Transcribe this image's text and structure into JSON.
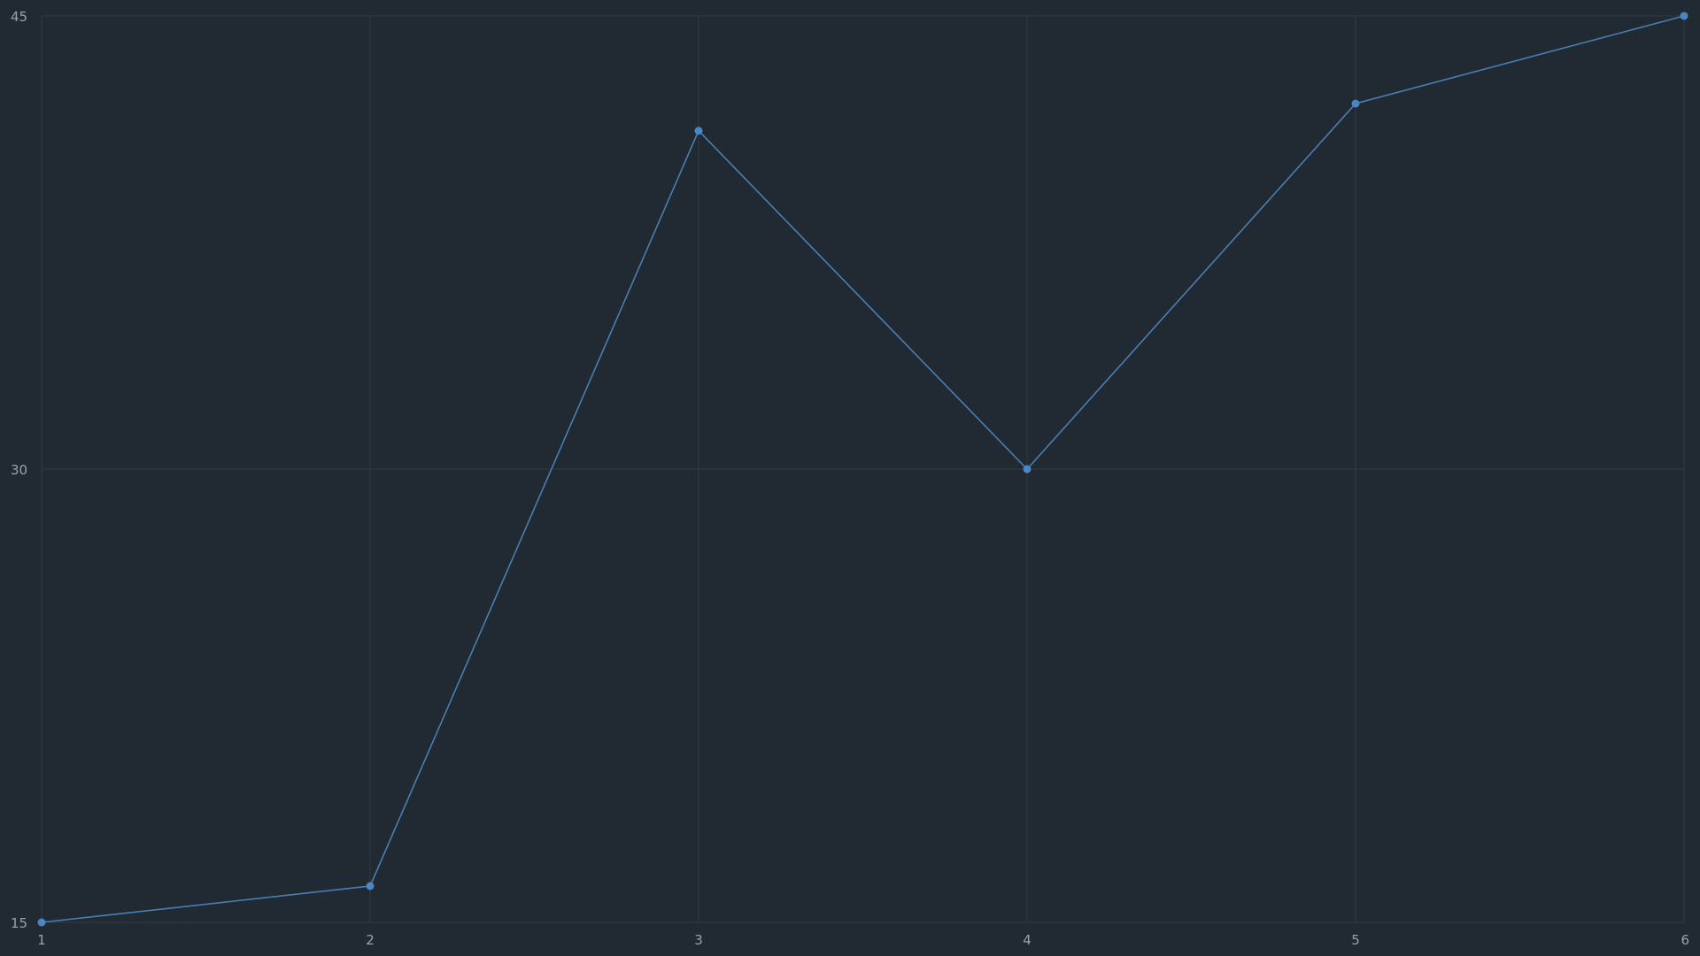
{
  "chart_data": {
    "type": "line",
    "title": "",
    "xlabel": "",
    "ylabel": "",
    "x": [
      1,
      2,
      3,
      4,
      5,
      6
    ],
    "xlim": [
      1,
      6
    ],
    "ylim": [
      15,
      45
    ],
    "x_ticks": [
      1,
      2,
      3,
      4,
      5,
      6
    ],
    "y_ticks": [
      15,
      30,
      45
    ],
    "grid": true,
    "legend": "none",
    "series": [
      {
        "values": [
          15,
          16.2,
          41.2,
          30,
          42.1,
          45
        ]
      }
    ]
  },
  "colors": {
    "background": "#212932",
    "grid": "#2f3a46",
    "tick_text": "#9aa3ad",
    "series": "#4a7fb3",
    "marker": "#4a86c0"
  }
}
